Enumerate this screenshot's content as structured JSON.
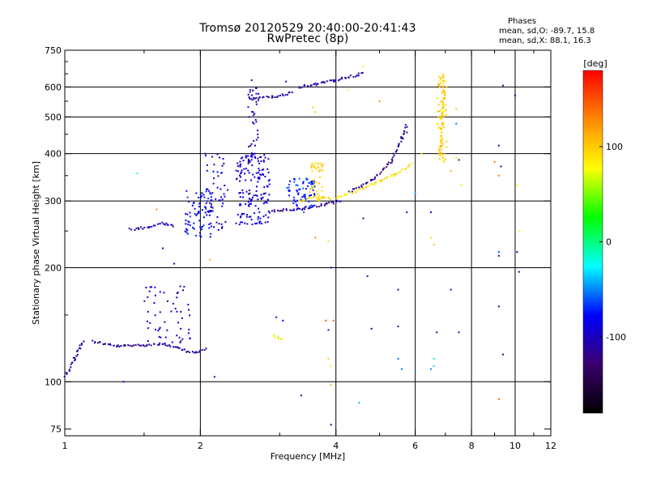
{
  "chart_data": {
    "type": "scatter",
    "title": "Tromsø 20120529 20:40:00-20:41:43",
    "subtitle": "RwPretec (8p)",
    "xlabel": "Frequency [MHz]",
    "ylabel": "Stationary phase Virtual Height [km]",
    "x_scale": "log",
    "y_scale": "log",
    "xlim": [
      1,
      12
    ],
    "ylim": [
      72,
      750
    ],
    "x_ticks": [
      1,
      2,
      4,
      6,
      8,
      10,
      12
    ],
    "x_tick_labels": [
      "1",
      "2",
      "4",
      "6",
      "8",
      "10",
      "12"
    ],
    "y_ticks": [
      75,
      100,
      200,
      300,
      400,
      500,
      600,
      750
    ],
    "y_tick_labels": [
      "75",
      "100",
      "200",
      "300",
      "400",
      "500",
      "600",
      "750"
    ],
    "grid_x": [
      2,
      4,
      6,
      8,
      10
    ],
    "grid_y": [
      100,
      200,
      300,
      400,
      500,
      600
    ],
    "grid": true,
    "phase_stats": {
      "title": "Phases",
      "o_mode": "mean, sd,O: -89.7, 15.8",
      "x_mode": "mean, sd,X:  88.1, 16.3"
    },
    "colorbar": {
      "label": "[deg]",
      "range": [
        -180,
        180
      ],
      "ticks": [
        100,
        0,
        -100
      ],
      "tick_labels": [
        "100",
        "0",
        "-100"
      ],
      "colors": [
        "#000000",
        "#3a006e",
        "#0000ff",
        "#00ffff",
        "#00ff00",
        "#ffff00",
        "#ff8800",
        "#ff0000"
      ]
    },
    "traces": [
      {
        "name": "",
        "phase": -110,
        "segments": [
          [
            1.15,
            128
          ],
          [
            1.3,
            124
          ],
          [
            1.5,
            125
          ],
          [
            1.65,
            126
          ],
          [
            1.8,
            122
          ],
          [
            1.95,
            119
          ],
          [
            2.05,
            122
          ]
        ]
      },
      {
        "name": "",
        "phase": -110,
        "segments": [
          [
            1.0,
            103
          ],
          [
            1.05,
            115
          ],
          [
            1.1,
            128
          ]
        ]
      },
      {
        "name": "",
        "phase": -115,
        "segments": [
          [
            2.85,
            282
          ],
          [
            3.3,
            285
          ],
          [
            3.8,
            294
          ],
          [
            4.1,
            300
          ]
        ]
      },
      {
        "name": "",
        "phase": -115,
        "segments": [
          [
            4.3,
            318
          ],
          [
            4.8,
            340
          ],
          [
            5.3,
            380
          ],
          [
            5.6,
            440
          ],
          [
            5.75,
            475
          ]
        ]
      },
      {
        "name": "",
        "phase": -110,
        "segments": [
          [
            3.3,
            600
          ],
          [
            3.6,
            610
          ],
          [
            4.0,
            625
          ],
          [
            4.6,
            650
          ]
        ]
      },
      {
        "name": "",
        "phase": -105,
        "segments": [
          [
            2.6,
            560
          ],
          [
            2.9,
            565
          ],
          [
            3.2,
            578
          ]
        ]
      },
      {
        "name": "",
        "phase": -105,
        "segments": [
          [
            1.4,
            252
          ],
          [
            1.55,
            256
          ],
          [
            1.65,
            262
          ],
          [
            1.75,
            258
          ]
        ]
      },
      {
        "name": "",
        "phase": 90,
        "segments": [
          [
            4.0,
            305
          ],
          [
            4.4,
            318
          ],
          [
            4.9,
            335
          ],
          [
            5.4,
            352
          ],
          [
            5.9,
            375
          ]
        ]
      },
      {
        "name": "",
        "phase": 95,
        "segments": [
          [
            3.3,
            300
          ],
          [
            3.6,
            308
          ],
          [
            3.9,
            304
          ]
        ]
      },
      {
        "name": "",
        "phase": 100,
        "segments": [
          [
            6.8,
            390
          ],
          [
            6.85,
            430
          ],
          [
            6.9,
            500
          ],
          [
            6.95,
            560
          ],
          [
            6.9,
            640
          ]
        ]
      },
      {
        "name": "",
        "phase": 80,
        "segments": [
          [
            2.9,
            132
          ],
          [
            3.05,
            130
          ]
        ]
      }
    ],
    "clusters": [
      {
        "phase": -90,
        "x": [
          2.4,
          2.85
        ],
        "y": [
          260,
          400
        ],
        "count": 160
      },
      {
        "phase": -80,
        "x": [
          1.85,
          2.15
        ],
        "y": [
          240,
          320
        ],
        "count": 80
      },
      {
        "phase": -95,
        "x": [
          2.05,
          2.3
        ],
        "y": [
          250,
          400
        ],
        "count": 50
      },
      {
        "phase": -100,
        "x": [
          2.55,
          2.7
        ],
        "y": [
          380,
          600
        ],
        "count": 45
      },
      {
        "phase": -100,
        "x": [
          1.5,
          1.9
        ],
        "y": [
          125,
          180
        ],
        "count": 55
      },
      {
        "phase": -70,
        "x": [
          3.1,
          3.6
        ],
        "y": [
          280,
          345
        ],
        "count": 70
      },
      {
        "phase": 100,
        "x": [
          3.5,
          3.75
        ],
        "y": [
          300,
          380
        ],
        "count": 40
      },
      {
        "phase": 95,
        "x": [
          6.7,
          7.05
        ],
        "y": [
          380,
          650
        ],
        "count": 60
      }
    ],
    "scattered": [
      {
        "phase": -110,
        "x": 2.05,
        "y": 400
      },
      {
        "phase": -110,
        "x": 2.6,
        "y": 625
      },
      {
        "phase": -110,
        "x": 3.1,
        "y": 620
      },
      {
        "phase": -110,
        "x": 4.7,
        "y": 190
      },
      {
        "phase": -110,
        "x": 4.6,
        "y": 270
      },
      {
        "phase": -110,
        "x": 5.5,
        "y": 175
      },
      {
        "phase": -110,
        "x": 5.5,
        "y": 140
      },
      {
        "phase": -105,
        "x": 5.75,
        "y": 280
      },
      {
        "phase": -110,
        "x": 5.75,
        "y": 455
      },
      {
        "phase": -110,
        "x": 6.5,
        "y": 280
      },
      {
        "phase": -110,
        "x": 7.5,
        "y": 385
      },
      {
        "phase": -110,
        "x": 9.3,
        "y": 370
      },
      {
        "phase": -110,
        "x": 9.2,
        "y": 420
      },
      {
        "phase": -110,
        "x": 9.4,
        "y": 605
      },
      {
        "phase": -115,
        "x": 10.0,
        "y": 570
      },
      {
        "phase": -110,
        "x": 9.2,
        "y": 158
      },
      {
        "phase": -110,
        "x": 9.4,
        "y": 118
      },
      {
        "phase": -100,
        "x": 10.1,
        "y": 220
      },
      {
        "phase": -110,
        "x": 10.2,
        "y": 195
      },
      {
        "phase": -120,
        "x": 9.2,
        "y": 215
      },
      {
        "phase": -110,
        "x": 3.9,
        "y": 77
      },
      {
        "phase": -110,
        "x": 3.85,
        "y": 137
      },
      {
        "phase": -110,
        "x": 4.8,
        "y": 138
      },
      {
        "phase": -110,
        "x": 6.7,
        "y": 135
      },
      {
        "phase": -110,
        "x": 7.5,
        "y": 135
      },
      {
        "phase": -110,
        "x": 7.2,
        "y": 175
      },
      {
        "phase": -110,
        "x": 3.35,
        "y": 92
      },
      {
        "phase": -110,
        "x": 3.9,
        "y": 200
      },
      {
        "phase": -100,
        "x": 1.75,
        "y": 205
      },
      {
        "phase": -100,
        "x": 1.65,
        "y": 225
      },
      {
        "phase": -90,
        "x": 1.35,
        "y": 100
      },
      {
        "phase": -90,
        "x": 2.15,
        "y": 103
      },
      {
        "phase": -90,
        "x": 3.05,
        "y": 145
      },
      {
        "phase": -95,
        "x": 2.95,
        "y": 148
      },
      {
        "phase": -40,
        "x": 1.45,
        "y": 355
      },
      {
        "phase": -40,
        "x": 4.5,
        "y": 88
      },
      {
        "phase": -40,
        "x": 5.6,
        "y": 108
      },
      {
        "phase": -50,
        "x": 6.5,
        "y": 108
      },
      {
        "phase": -40,
        "x": 6.0,
        "y": 315
      },
      {
        "phase": -60,
        "x": 5.5,
        "y": 115
      },
      {
        "phase": -60,
        "x": 9.2,
        "y": 220
      },
      {
        "phase": -50,
        "x": 7.4,
        "y": 480
      },
      {
        "phase": -40,
        "x": 6.6,
        "y": 110
      },
      {
        "phase": 0,
        "x": 6.6,
        "y": 115
      },
      {
        "phase": 20,
        "x": 3.55,
        "y": 325
      },
      {
        "phase": 90,
        "x": 3.85,
        "y": 115
      },
      {
        "phase": 90,
        "x": 3.9,
        "y": 110
      },
      {
        "phase": 100,
        "x": 3.9,
        "y": 98
      },
      {
        "phase": 90,
        "x": 4.25,
        "y": 590
      },
      {
        "phase": 90,
        "x": 3.6,
        "y": 515
      },
      {
        "phase": 90,
        "x": 3.85,
        "y": 235
      },
      {
        "phase": 95,
        "x": 6.5,
        "y": 240
      },
      {
        "phase": 90,
        "x": 6.6,
        "y": 230
      },
      {
        "phase": 90,
        "x": 7.4,
        "y": 390
      },
      {
        "phase": 90,
        "x": 7.4,
        "y": 525
      },
      {
        "phase": 100,
        "x": 7.2,
        "y": 360
      },
      {
        "phase": 90,
        "x": 7.6,
        "y": 330
      },
      {
        "phase": 80,
        "x": 6.2,
        "y": 400
      },
      {
        "phase": 90,
        "x": 4.6,
        "y": 680
      },
      {
        "phase": 90,
        "x": 3.55,
        "y": 530
      },
      {
        "phase": 110,
        "x": 5.0,
        "y": 550
      },
      {
        "phase": 110,
        "x": 2.1,
        "y": 210
      },
      {
        "phase": 140,
        "x": 1.6,
        "y": 285
      },
      {
        "phase": 150,
        "x": 3.8,
        "y": 145
      },
      {
        "phase": 150,
        "x": 3.95,
        "y": 145
      },
      {
        "phase": 150,
        "x": 9.2,
        "y": 90
      },
      {
        "phase": 140,
        "x": 9.0,
        "y": 380
      },
      {
        "phase": 140,
        "x": 9.2,
        "y": 350
      },
      {
        "phase": 140,
        "x": 3.6,
        "y": 240
      },
      {
        "phase": 80,
        "x": 10.2,
        "y": 250
      },
      {
        "phase": 80,
        "x": 10.1,
        "y": 330
      }
    ]
  }
}
